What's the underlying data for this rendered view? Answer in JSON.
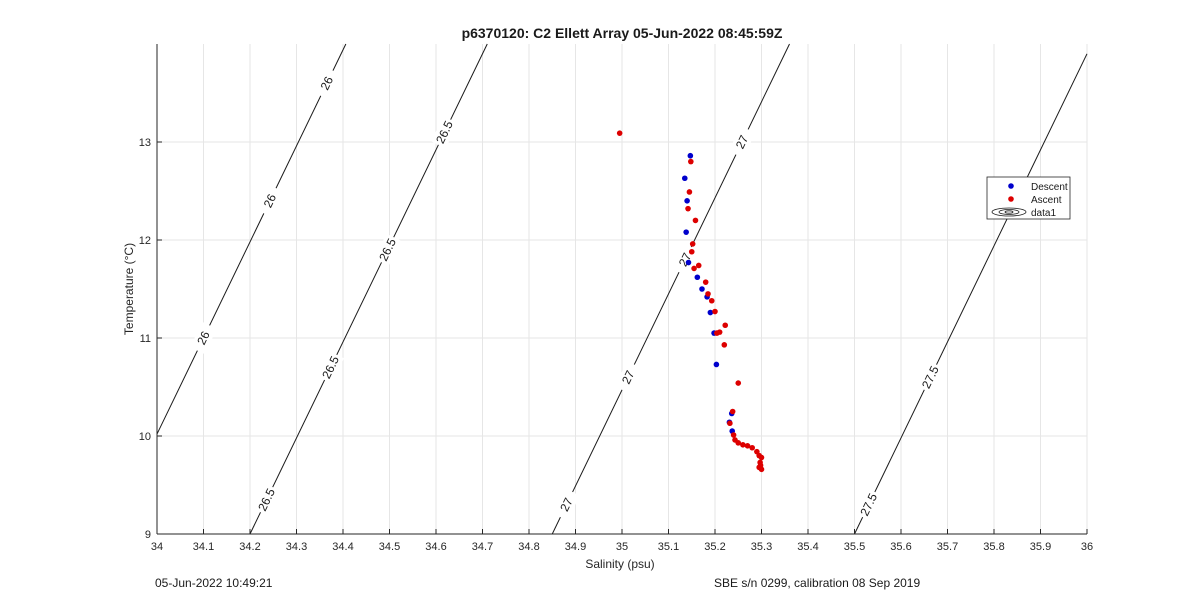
{
  "chart_data": {
    "type": "scatter",
    "title": "p6370120: C2 Ellett Array 05-Jun-2022 08:45:59Z",
    "xlabel": "Salinity (psu)",
    "ylabel": "Temperature (°C)",
    "xlim": [
      34,
      36
    ],
    "ylim": [
      9,
      14
    ],
    "xticks": [
      "34",
      "34.1",
      "34.2",
      "34.3",
      "34.4",
      "34.5",
      "34.6",
      "34.7",
      "34.8",
      "34.9",
      "35",
      "35.1",
      "35.2",
      "35.3",
      "35.4",
      "35.5",
      "35.6",
      "35.7",
      "35.8",
      "35.9",
      "36"
    ],
    "yticks": [
      "9",
      "10",
      "11",
      "12",
      "13"
    ],
    "grid": true,
    "legend_position": "right",
    "legend": [
      "Descent",
      "Ascent",
      "data1"
    ],
    "series": [
      {
        "name": "Descent",
        "color": "#0000cc",
        "points": [
          [
            35.147,
            12.86
          ],
          [
            35.135,
            12.63
          ],
          [
            35.14,
            12.4
          ],
          [
            35.138,
            12.08
          ],
          [
            35.143,
            11.77
          ],
          [
            35.162,
            11.62
          ],
          [
            35.172,
            11.5
          ],
          [
            35.183,
            11.42
          ],
          [
            35.19,
            11.26
          ],
          [
            35.198,
            11.05
          ],
          [
            35.203,
            10.73
          ],
          [
            35.231,
            10.14
          ],
          [
            35.236,
            10.23
          ],
          [
            35.237,
            10.05
          ]
        ]
      },
      {
        "name": "Ascent",
        "color": "#dd0000",
        "points": [
          [
            34.995,
            13.09
          ],
          [
            35.148,
            12.8
          ],
          [
            35.145,
            12.49
          ],
          [
            35.142,
            12.32
          ],
          [
            35.158,
            12.2
          ],
          [
            35.152,
            11.96
          ],
          [
            35.15,
            11.88
          ],
          [
            35.165,
            11.74
          ],
          [
            35.155,
            11.71
          ],
          [
            35.18,
            11.57
          ],
          [
            35.185,
            11.45
          ],
          [
            35.193,
            11.38
          ],
          [
            35.2,
            11.27
          ],
          [
            35.21,
            11.06
          ],
          [
            35.204,
            11.05
          ],
          [
            35.222,
            11.13
          ],
          [
            35.22,
            10.93
          ],
          [
            35.25,
            10.54
          ],
          [
            35.238,
            10.25
          ],
          [
            35.232,
            10.13
          ],
          [
            35.24,
            10.01
          ],
          [
            35.243,
            9.96
          ],
          [
            35.25,
            9.93
          ],
          [
            35.26,
            9.91
          ],
          [
            35.27,
            9.9
          ],
          [
            35.28,
            9.88
          ],
          [
            35.29,
            9.84
          ],
          [
            35.295,
            9.8
          ],
          [
            35.297,
            9.73
          ],
          [
            35.295,
            9.68
          ],
          [
            35.3,
            9.66
          ],
          [
            35.3,
            9.78
          ],
          [
            35.298,
            9.7
          ]
        ]
      }
    ],
    "contours": [
      {
        "level": "26",
        "labels_at": [
          11.0,
          12.4,
          13.6
        ]
      },
      {
        "level": "26.5",
        "labels_at": [
          9.35,
          10.7,
          11.9,
          13.1
        ]
      },
      {
        "level": "27",
        "labels_at": [
          9.3,
          10.6,
          11.8,
          13.0
        ]
      },
      {
        "level": "27.5",
        "labels_at": [
          9.3,
          10.6
        ]
      }
    ]
  },
  "footer": {
    "left": "05-Jun-2022 10:49:21",
    "right": "SBE s/n 0299, calibration 08 Sep 2019"
  }
}
